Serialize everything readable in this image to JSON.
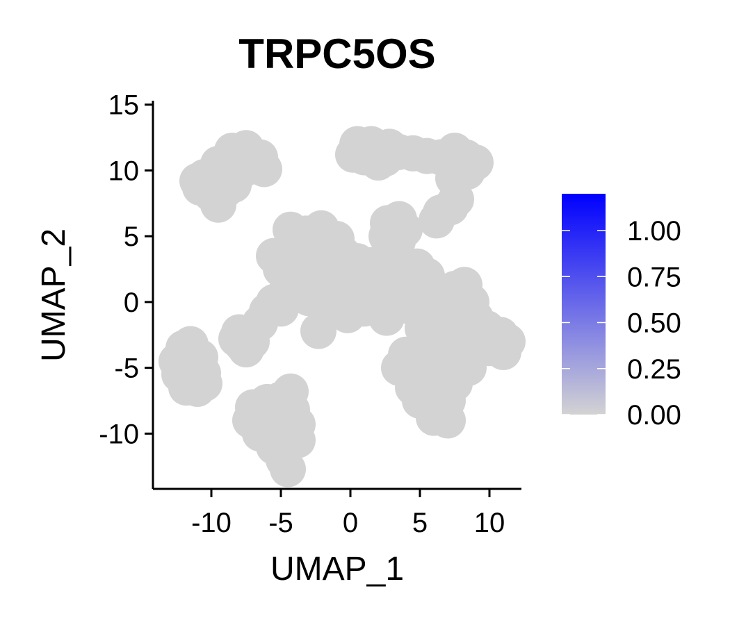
{
  "chart_data": {
    "type": "scatter",
    "title": "TRPC5OS",
    "xlabel": "UMAP_1",
    "ylabel": "UMAP_2",
    "xlim": [
      -14.2,
      12.3
    ],
    "ylim": [
      -14.2,
      15.3
    ],
    "x_ticks": [
      -10,
      -5,
      0,
      5,
      10
    ],
    "y_ticks": [
      15,
      10,
      5,
      0,
      -5,
      -10
    ],
    "point_color": "#d3d3d3",
    "all_expression_values": 0,
    "clusters": [
      {
        "name": "top-left",
        "points": [
          [
            -9.5,
            10.5
          ],
          [
            -8.5,
            11.5
          ],
          [
            -7.5,
            11.7
          ],
          [
            -6.5,
            11
          ],
          [
            -10.5,
            9.5
          ],
          [
            -9.5,
            9.3
          ],
          [
            -8,
            9.8
          ],
          [
            -7,
            10.3
          ],
          [
            -6.2,
            10.1
          ],
          [
            -10.8,
            8.7
          ],
          [
            -10,
            8.2
          ],
          [
            -9,
            8.5
          ],
          [
            -9.5,
            7.4
          ],
          [
            -8.4,
            8.9
          ],
          [
            -11,
            9.2
          ]
        ]
      },
      {
        "name": "top-right",
        "points": [
          [
            0.5,
            12
          ],
          [
            1.5,
            12
          ],
          [
            2.8,
            11.8
          ],
          [
            3.5,
            11.4
          ],
          [
            0.2,
            11.2
          ],
          [
            1,
            11
          ],
          [
            2,
            10.6
          ],
          [
            2.5,
            10.9
          ],
          [
            4.5,
            11.3
          ],
          [
            5.5,
            11.1
          ],
          [
            6.5,
            11
          ],
          [
            7.5,
            11.5
          ],
          [
            8.3,
            11
          ],
          [
            9,
            10.6
          ],
          [
            7.5,
            10.4
          ],
          [
            8.4,
            9.9
          ],
          [
            7.4,
            9.4
          ]
        ]
      },
      {
        "name": "top-right-sliver",
        "points": [
          [
            6.5,
            6.8
          ],
          [
            7.2,
            7.2
          ],
          [
            7.6,
            7.8
          ],
          [
            6.2,
            6.2
          ]
        ]
      },
      {
        "name": "upper-middle",
        "points": [
          [
            2.7,
            6
          ],
          [
            3.5,
            6.3
          ],
          [
            3.2,
            5.5
          ],
          [
            2.6,
            5
          ],
          [
            3.9,
            5.5
          ],
          [
            3.4,
            4.6
          ]
        ]
      },
      {
        "name": "center",
        "points": [
          [
            -5.5,
            3.5
          ],
          [
            -4.5,
            3.8
          ],
          [
            -3.5,
            4
          ],
          [
            -2.5,
            4.5
          ],
          [
            -1.5,
            4.2
          ],
          [
            -0.5,
            3.6
          ],
          [
            0.5,
            3.1
          ],
          [
            1.5,
            2.8
          ],
          [
            2.5,
            3
          ],
          [
            3.5,
            3.1
          ],
          [
            -5,
            2.5
          ],
          [
            -4,
            2.4
          ],
          [
            -3,
            2.2
          ],
          [
            -2,
            2.6
          ],
          [
            -1,
            2.4
          ],
          [
            0,
            2
          ],
          [
            1,
            1.6
          ],
          [
            2,
            1.8
          ],
          [
            3,
            1.9
          ],
          [
            4,
            2.3
          ],
          [
            4.8,
            2.7
          ],
          [
            -4.5,
            1.5
          ],
          [
            -3.5,
            1.3
          ],
          [
            -2.5,
            1
          ],
          [
            -1.5,
            1
          ],
          [
            -0.5,
            0.8
          ],
          [
            0.5,
            0.5
          ],
          [
            1.5,
            0.6
          ],
          [
            2.5,
            0.8
          ],
          [
            -4,
            0.5
          ],
          [
            -3,
            0.3
          ],
          [
            -2,
            0.2
          ],
          [
            -1,
            0
          ],
          [
            0,
            -0.3
          ],
          [
            1,
            -0.5
          ],
          [
            2,
            0.1
          ],
          [
            3,
            -0.1
          ],
          [
            3.6,
            0.6
          ],
          [
            -5.5,
            0
          ],
          [
            -6,
            -0.7
          ],
          [
            -5,
            -0.5
          ],
          [
            -6.5,
            -1.6
          ],
          [
            -3.2,
            5.2
          ],
          [
            -4.3,
            5.5
          ],
          [
            -2.1,
            5.6
          ],
          [
            -1,
            4.8
          ],
          [
            5.5,
            2
          ],
          [
            4.6,
            -0.5
          ],
          [
            -2.3,
            -2.2
          ],
          [
            -0.2,
            -1
          ],
          [
            2.6,
            -1.2
          ]
        ]
      },
      {
        "name": "left-small",
        "points": [
          [
            -8.2,
            -2.8
          ],
          [
            -7.8,
            -3.2
          ],
          [
            -7.1,
            -3
          ],
          [
            -7.5,
            -3.6
          ],
          [
            -8,
            -2.3
          ]
        ]
      },
      {
        "name": "right-large",
        "points": [
          [
            5.5,
            0
          ],
          [
            6.5,
            0.5
          ],
          [
            7.5,
            1
          ],
          [
            8.2,
            1.3
          ],
          [
            6,
            -1
          ],
          [
            7,
            -0.5
          ],
          [
            8,
            -0.3
          ],
          [
            8.7,
            0
          ],
          [
            5.2,
            -2
          ],
          [
            6.2,
            -1.8
          ],
          [
            7.2,
            -1.6
          ],
          [
            8.2,
            -1.5
          ],
          [
            9,
            -1.2
          ],
          [
            9.8,
            -2
          ],
          [
            10.8,
            -2.5
          ],
          [
            11.3,
            -3
          ],
          [
            4,
            -4
          ],
          [
            5,
            -4.2
          ],
          [
            6,
            -3.8
          ],
          [
            7,
            -3.5
          ],
          [
            8,
            -3.3
          ],
          [
            9,
            -3.2
          ],
          [
            10,
            -3.5
          ],
          [
            11,
            -3.8
          ],
          [
            3.5,
            -5
          ],
          [
            4.5,
            -5.5
          ],
          [
            5.5,
            -5
          ],
          [
            6.5,
            -4.8
          ],
          [
            7.5,
            -5
          ],
          [
            8.5,
            -5
          ],
          [
            4.5,
            -6.5
          ],
          [
            5.5,
            -6.8
          ],
          [
            6.5,
            -6.5
          ],
          [
            7.5,
            -6.2
          ],
          [
            5,
            -7.5
          ],
          [
            6,
            -8
          ],
          [
            7,
            -7.5
          ],
          [
            6,
            -8.8
          ],
          [
            7,
            -9
          ]
        ]
      },
      {
        "name": "bottom-left",
        "points": [
          [
            -12,
            -3.5
          ],
          [
            -11.5,
            -3.2
          ],
          [
            -12.5,
            -4.5
          ],
          [
            -11.5,
            -4.6
          ],
          [
            -10.8,
            -4.2
          ],
          [
            -12.3,
            -5.5
          ],
          [
            -11.3,
            -5.6
          ],
          [
            -10.6,
            -5.4
          ],
          [
            -11.8,
            -6.5
          ],
          [
            -11,
            -6.6
          ],
          [
            -10.5,
            -6.2
          ]
        ]
      },
      {
        "name": "bottom-middle",
        "points": [
          [
            -7,
            -8
          ],
          [
            -6,
            -7.6
          ],
          [
            -5,
            -7.4
          ],
          [
            -4.3,
            -6.8
          ],
          [
            -7.2,
            -9
          ],
          [
            -6.2,
            -8.8
          ],
          [
            -5.2,
            -8.6
          ],
          [
            -4.2,
            -8.2
          ],
          [
            -6.5,
            -10
          ],
          [
            -5.5,
            -9.8
          ],
          [
            -4.5,
            -9.6
          ],
          [
            -3.8,
            -9.3
          ],
          [
            -5.5,
            -11
          ],
          [
            -4.5,
            -11
          ],
          [
            -3.8,
            -10.5
          ],
          [
            -4.8,
            -12
          ],
          [
            -4.5,
            -12.7
          ]
        ]
      }
    ],
    "colorbar": {
      "low_color": "#d3d3d3",
      "high_color": "#0000ff",
      "min": 0,
      "max": 1.2,
      "tick_labels": [
        "1.00",
        "0.75",
        "0.50",
        "0.25",
        "0.00"
      ],
      "tick_values": [
        1,
        0.75,
        0.5,
        0.25,
        0
      ]
    }
  }
}
